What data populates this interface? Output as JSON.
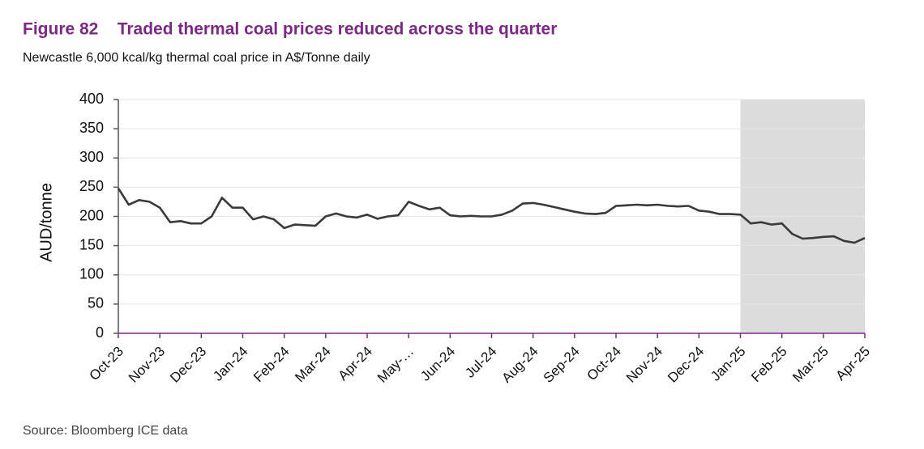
{
  "chart_data": {
    "type": "line",
    "title": "Figure 82    Traded thermal coal prices reduced across the quarter",
    "subtitle": "Newcastle 6,000 kcal/kg thermal coal price in A$/Tonne daily",
    "y_label": "AUD/tonne",
    "source": "Source: Bloomberg ICE data",
    "categories": [
      "Oct-23",
      null,
      null,
      null,
      "Nov-23",
      null,
      null,
      null,
      "Dec-23",
      null,
      null,
      null,
      "Jan-24",
      null,
      null,
      null,
      "Feb-24",
      null,
      null,
      null,
      "Mar-24",
      null,
      null,
      null,
      "Apr-24",
      null,
      null,
      null,
      "May-…",
      null,
      null,
      null,
      "Jun-24",
      null,
      null,
      null,
      "Jul-24",
      null,
      null,
      null,
      "Aug-24",
      null,
      null,
      null,
      "Sep-24",
      null,
      null,
      null,
      "Oct-24",
      null,
      null,
      null,
      "Nov-24",
      null,
      null,
      null,
      "Dec-24",
      null,
      null,
      null,
      "Jan-25",
      null,
      null,
      null,
      "Feb-25",
      null,
      null,
      null,
      "Mar-25",
      null,
      null,
      null,
      "Apr-25"
    ],
    "series": [
      {
        "color": "#3a3a3a",
        "values": [
          248,
          220,
          228,
          225,
          215,
          190,
          192,
          188,
          188,
          200,
          232,
          215,
          215,
          195,
          200,
          195,
          180,
          186,
          185,
          184,
          200,
          205,
          200,
          198,
          203,
          196,
          200,
          202,
          225,
          218,
          212,
          215,
          202,
          200,
          201,
          200,
          200,
          203,
          210,
          222,
          223,
          220,
          216,
          212,
          208,
          205,
          204,
          206,
          218,
          219,
          220,
          219,
          220,
          218,
          217,
          218,
          210,
          208,
          204,
          204,
          203,
          188,
          190,
          186,
          188,
          170,
          162,
          163,
          165,
          166,
          158,
          155,
          163
        ]
      }
    ],
    "highlight": {
      "from": "Jan-25",
      "to": "Apr-25",
      "color": "#dcdcdc"
    },
    "ylim": [
      0,
      400
    ],
    "yticks": [
      0,
      50,
      100,
      150,
      200,
      250,
      300,
      350,
      400
    ],
    "grid": true
  }
}
